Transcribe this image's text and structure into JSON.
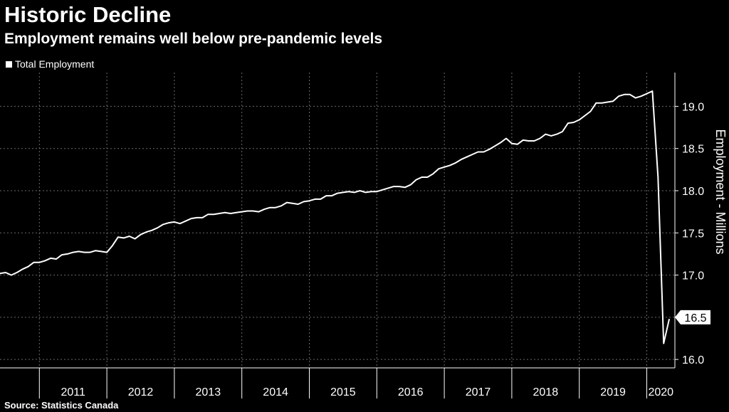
{
  "header": {
    "title": "Historic Decline",
    "subtitle": "Employment remains well below pre-pandemic levels"
  },
  "legend": {
    "label": "Total Employment"
  },
  "footer": {
    "source": "Source: Statistics Canada"
  },
  "colors": {
    "background": "#000000",
    "line": "#ffffff",
    "grid": "#6a6a6a"
  },
  "chart_data": {
    "type": "line",
    "title": "Historic Decline",
    "subtitle": "Employment remains well below pre-pandemic levels",
    "ylabel": "Employment - Millions",
    "xlabel": "",
    "y_axis_position": "right",
    "ylim": [
      15.9,
      19.4
    ],
    "yticks": [
      16.0,
      16.5,
      17.0,
      17.5,
      18.0,
      18.5,
      19.0
    ],
    "yticks_labels": [
      "16.0",
      "16.5",
      "17.0",
      "17.5",
      "18.0",
      "18.5",
      "19.0"
    ],
    "x_range": [
      "2010-06",
      "2020-06"
    ],
    "xticks_labels": [
      "2011",
      "2012",
      "2013",
      "2014",
      "2015",
      "2016",
      "2017",
      "2018",
      "2019",
      "2020"
    ],
    "grid": true,
    "legend_position": "top-left",
    "last_value_label": "16.5",
    "series": [
      {
        "name": "Total Employment",
        "x": [
          "2010-06",
          "2010-07",
          "2010-08",
          "2010-09",
          "2010-10",
          "2010-11",
          "2010-12",
          "2011-01",
          "2011-02",
          "2011-03",
          "2011-04",
          "2011-05",
          "2011-06",
          "2011-07",
          "2011-08",
          "2011-09",
          "2011-10",
          "2011-11",
          "2011-12",
          "2012-01",
          "2012-02",
          "2012-03",
          "2012-04",
          "2012-05",
          "2012-06",
          "2012-07",
          "2012-08",
          "2012-09",
          "2012-10",
          "2012-11",
          "2012-12",
          "2013-01",
          "2013-02",
          "2013-03",
          "2013-04",
          "2013-05",
          "2013-06",
          "2013-07",
          "2013-08",
          "2013-09",
          "2013-10",
          "2013-11",
          "2013-12",
          "2014-01",
          "2014-02",
          "2014-03",
          "2014-04",
          "2014-05",
          "2014-06",
          "2014-07",
          "2014-08",
          "2014-09",
          "2014-10",
          "2014-11",
          "2014-12",
          "2015-01",
          "2015-02",
          "2015-03",
          "2015-04",
          "2015-05",
          "2015-06",
          "2015-07",
          "2015-08",
          "2015-09",
          "2015-10",
          "2015-11",
          "2015-12",
          "2016-01",
          "2016-02",
          "2016-03",
          "2016-04",
          "2016-05",
          "2016-06",
          "2016-07",
          "2016-08",
          "2016-09",
          "2016-10",
          "2016-11",
          "2016-12",
          "2017-01",
          "2017-02",
          "2017-03",
          "2017-04",
          "2017-05",
          "2017-06",
          "2017-07",
          "2017-08",
          "2017-09",
          "2017-10",
          "2017-11",
          "2017-12",
          "2018-01",
          "2018-02",
          "2018-03",
          "2018-04",
          "2018-05",
          "2018-06",
          "2018-07",
          "2018-08",
          "2018-09",
          "2018-10",
          "2018-11",
          "2018-12",
          "2019-01",
          "2019-02",
          "2019-03",
          "2019-04",
          "2019-05",
          "2019-06",
          "2019-07",
          "2019-08",
          "2019-09",
          "2019-10",
          "2019-11",
          "2019-12",
          "2020-01",
          "2020-02",
          "2020-03",
          "2020-04",
          "2020-05"
        ],
        "values": [
          17.02,
          17.03,
          17.0,
          17.03,
          17.07,
          17.1,
          17.15,
          17.15,
          17.17,
          17.2,
          17.19,
          17.24,
          17.25,
          17.27,
          17.28,
          17.27,
          17.27,
          17.29,
          17.28,
          17.27,
          17.35,
          17.45,
          17.44,
          17.46,
          17.43,
          17.48,
          17.51,
          17.53,
          17.56,
          17.6,
          17.62,
          17.63,
          17.61,
          17.64,
          17.67,
          17.68,
          17.68,
          17.72,
          17.72,
          17.73,
          17.74,
          17.73,
          17.74,
          17.75,
          17.76,
          17.76,
          17.75,
          17.78,
          17.8,
          17.8,
          17.82,
          17.86,
          17.85,
          17.84,
          17.87,
          17.88,
          17.9,
          17.9,
          17.94,
          17.94,
          17.97,
          17.98,
          17.99,
          17.98,
          18.0,
          17.98,
          17.99,
          17.99,
          18.01,
          18.03,
          18.05,
          18.05,
          18.04,
          18.07,
          18.13,
          18.16,
          18.16,
          18.2,
          18.26,
          18.28,
          18.3,
          18.33,
          18.37,
          18.4,
          18.43,
          18.46,
          18.46,
          18.49,
          18.53,
          18.57,
          18.62,
          18.56,
          18.55,
          18.6,
          18.59,
          18.59,
          18.62,
          18.67,
          18.65,
          18.67,
          18.7,
          18.8,
          18.81,
          18.84,
          18.89,
          18.94,
          19.04,
          19.04,
          19.05,
          19.06,
          19.12,
          19.14,
          19.14,
          19.1,
          19.12,
          19.15,
          19.18,
          18.16,
          16.19,
          16.48
        ]
      }
    ]
  }
}
